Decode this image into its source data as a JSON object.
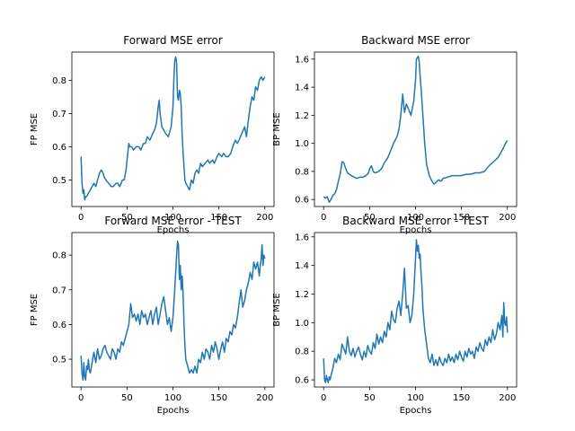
{
  "chart_data": [
    {
      "type": "line",
      "title": "Forward MSE error",
      "xlabel": "Epochs",
      "ylabel": "FP MSE",
      "xlim": [
        -10,
        210
      ],
      "ylim": [
        0.42,
        0.885
      ],
      "xticks": [
        0,
        50,
        100,
        150,
        200
      ],
      "yticks": [
        0.5,
        0.6,
        0.7,
        0.8
      ],
      "series": [
        {
          "color": "#1f77b4",
          "x": [
            0,
            1,
            2,
            3,
            4,
            5,
            6,
            8,
            10,
            12,
            14,
            16,
            18,
            20,
            22,
            24,
            25,
            27,
            30,
            33,
            35,
            38,
            40,
            42,
            45,
            47,
            49,
            50,
            52,
            53,
            55,
            57,
            60,
            63,
            65,
            68,
            70,
            72,
            75,
            78,
            80,
            82,
            84,
            85,
            86,
            87,
            88,
            90,
            92,
            95,
            98,
            100,
            101,
            102,
            103,
            104,
            105,
            106,
            107,
            108,
            109,
            110,
            111,
            112,
            113,
            114,
            116,
            118,
            120,
            122,
            124,
            126,
            128,
            130,
            132,
            135,
            138,
            140,
            143,
            145,
            148,
            150,
            153,
            155,
            158,
            160,
            163,
            165,
            168,
            170,
            172,
            175,
            178,
            180,
            182,
            184,
            186,
            188,
            190,
            192,
            194,
            196,
            198,
            200
          ],
          "y": [
            0.57,
            0.49,
            0.46,
            0.47,
            0.44,
            0.45,
            0.45,
            0.46,
            0.47,
            0.48,
            0.49,
            0.48,
            0.5,
            0.52,
            0.53,
            0.52,
            0.51,
            0.5,
            0.49,
            0.48,
            0.48,
            0.49,
            0.49,
            0.48,
            0.5,
            0.5,
            0.53,
            0.56,
            0.61,
            0.6,
            0.6,
            0.59,
            0.6,
            0.6,
            0.59,
            0.61,
            0.61,
            0.63,
            0.62,
            0.64,
            0.65,
            0.67,
            0.72,
            0.74,
            0.7,
            0.68,
            0.66,
            0.65,
            0.64,
            0.63,
            0.66,
            0.72,
            0.8,
            0.86,
            0.87,
            0.85,
            0.75,
            0.74,
            0.77,
            0.76,
            0.72,
            0.64,
            0.58,
            0.54,
            0.5,
            0.49,
            0.48,
            0.47,
            0.5,
            0.49,
            0.52,
            0.53,
            0.52,
            0.55,
            0.54,
            0.55,
            0.56,
            0.55,
            0.56,
            0.55,
            0.57,
            0.58,
            0.57,
            0.58,
            0.57,
            0.57,
            0.58,
            0.6,
            0.62,
            0.61,
            0.62,
            0.64,
            0.66,
            0.63,
            0.68,
            0.72,
            0.75,
            0.74,
            0.78,
            0.77,
            0.8,
            0.81,
            0.8,
            0.81
          ]
        }
      ]
    },
    {
      "type": "line",
      "title": "Backward MSE error",
      "xlabel": "Epochs",
      "ylabel": "BP MSE",
      "xlim": [
        -10,
        210
      ],
      "ylim": [
        0.55,
        1.65
      ],
      "xticks": [
        0,
        50,
        100,
        150,
        200
      ],
      "yticks": [
        0.6,
        0.8,
        1.0,
        1.2,
        1.4,
        1.6
      ],
      "series": [
        {
          "color": "#1f77b4",
          "x": [
            0,
            2,
            4,
            6,
            8,
            10,
            12,
            14,
            16,
            18,
            20,
            22,
            24,
            26,
            28,
            30,
            33,
            36,
            40,
            43,
            46,
            49,
            50,
            52,
            54,
            56,
            60,
            63,
            66,
            70,
            73,
            76,
            80,
            82,
            84,
            86,
            88,
            90,
            92,
            95,
            98,
            100,
            101,
            102,
            103,
            104,
            105,
            106,
            108,
            110,
            112,
            115,
            118,
            120,
            122,
            125,
            128,
            130,
            135,
            140,
            145,
            150,
            155,
            160,
            165,
            170,
            175,
            180,
            185,
            190,
            195,
            198,
            200
          ],
          "y": [
            0.62,
            0.61,
            0.62,
            0.58,
            0.6,
            0.63,
            0.64,
            0.67,
            0.73,
            0.78,
            0.87,
            0.86,
            0.82,
            0.79,
            0.78,
            0.77,
            0.76,
            0.75,
            0.76,
            0.76,
            0.77,
            0.79,
            0.82,
            0.84,
            0.8,
            0.79,
            0.8,
            0.82,
            0.86,
            0.9,
            0.95,
            1.0,
            1.05,
            1.1,
            1.2,
            1.35,
            1.22,
            1.28,
            1.25,
            1.2,
            1.3,
            1.45,
            1.6,
            1.61,
            1.62,
            1.58,
            1.48,
            1.4,
            1.2,
            1.0,
            0.85,
            0.77,
            0.73,
            0.71,
            0.72,
            0.74,
            0.73,
            0.75,
            0.76,
            0.77,
            0.77,
            0.77,
            0.78,
            0.78,
            0.79,
            0.79,
            0.8,
            0.84,
            0.87,
            0.9,
            0.96,
            1.0,
            1.02
          ]
        }
      ]
    },
    {
      "type": "line",
      "title": "Forward MSE error - TEST",
      "xlabel": "Epochs",
      "ylabel": "FP MSE",
      "xlim": [
        -10,
        210
      ],
      "ylim": [
        0.42,
        0.865
      ],
      "xticks": [
        0,
        50,
        100,
        150,
        200
      ],
      "yticks": [
        0.5,
        0.6,
        0.7,
        0.8
      ],
      "series": [
        {
          "color": "#1f77b4",
          "x": [
            0,
            1,
            2,
            3,
            4,
            5,
            6,
            7,
            8,
            9,
            10,
            12,
            14,
            16,
            18,
            20,
            22,
            24,
            26,
            28,
            30,
            32,
            34,
            36,
            38,
            40,
            42,
            44,
            46,
            48,
            50,
            52,
            54,
            56,
            58,
            60,
            62,
            64,
            66,
            68,
            70,
            72,
            74,
            76,
            78,
            80,
            82,
            84,
            86,
            88,
            90,
            92,
            94,
            96,
            98,
            100,
            102,
            104,
            105,
            106,
            107,
            108,
            109,
            110,
            111,
            112,
            113,
            114,
            116,
            118,
            120,
            122,
            124,
            126,
            128,
            130,
            132,
            134,
            136,
            138,
            140,
            142,
            144,
            146,
            148,
            150,
            152,
            154,
            156,
            158,
            160,
            162,
            164,
            166,
            168,
            170,
            172,
            174,
            176,
            178,
            180,
            182,
            184,
            186,
            188,
            190,
            192,
            194,
            195,
            196,
            197,
            198,
            199,
            200
          ],
          "y": [
            0.51,
            0.46,
            0.44,
            0.49,
            0.45,
            0.44,
            0.48,
            0.47,
            0.5,
            0.47,
            0.46,
            0.49,
            0.52,
            0.49,
            0.53,
            0.5,
            0.51,
            0.53,
            0.54,
            0.52,
            0.51,
            0.5,
            0.53,
            0.52,
            0.5,
            0.53,
            0.52,
            0.55,
            0.54,
            0.56,
            0.58,
            0.6,
            0.66,
            0.62,
            0.63,
            0.61,
            0.63,
            0.6,
            0.64,
            0.62,
            0.63,
            0.6,
            0.62,
            0.64,
            0.6,
            0.63,
            0.65,
            0.6,
            0.63,
            0.66,
            0.68,
            0.64,
            0.6,
            0.62,
            0.58,
            0.62,
            0.7,
            0.8,
            0.84,
            0.83,
            0.73,
            0.77,
            0.7,
            0.74,
            0.69,
            0.6,
            0.54,
            0.5,
            0.48,
            0.46,
            0.47,
            0.46,
            0.48,
            0.46,
            0.5,
            0.49,
            0.52,
            0.5,
            0.53,
            0.52,
            0.5,
            0.54,
            0.52,
            0.55,
            0.53,
            0.5,
            0.53,
            0.55,
            0.52,
            0.56,
            0.55,
            0.58,
            0.57,
            0.6,
            0.59,
            0.62,
            0.66,
            0.7,
            0.65,
            0.67,
            0.7,
            0.72,
            0.75,
            0.73,
            0.78,
            0.76,
            0.78,
            0.74,
            0.77,
            0.79,
            0.83,
            0.77,
            0.8,
            0.79
          ]
        }
      ]
    },
    {
      "type": "line",
      "title": "Backward MSE error - TEST",
      "xlabel": "Epochs",
      "ylabel": "BP MSE",
      "xlim": [
        -10,
        210
      ],
      "ylim": [
        0.55,
        1.63
      ],
      "xticks": [
        0,
        50,
        100,
        150,
        200
      ],
      "yticks": [
        0.6,
        0.8,
        1.0,
        1.2,
        1.4,
        1.6
      ],
      "series": [
        {
          "color": "#1f77b4",
          "x": [
            0,
            1,
            2,
            3,
            4,
            5,
            6,
            7,
            8,
            10,
            12,
            14,
            16,
            18,
            20,
            22,
            24,
            26,
            28,
            30,
            32,
            34,
            36,
            38,
            40,
            42,
            44,
            46,
            48,
            50,
            52,
            54,
            56,
            58,
            60,
            62,
            64,
            66,
            68,
            70,
            72,
            74,
            76,
            78,
            80,
            82,
            84,
            86,
            88,
            90,
            92,
            94,
            96,
            98,
            100,
            101,
            102,
            103,
            104,
            105,
            106,
            107,
            108,
            110,
            112,
            114,
            116,
            118,
            120,
            122,
            124,
            126,
            128,
            130,
            132,
            134,
            136,
            138,
            140,
            142,
            144,
            146,
            148,
            150,
            152,
            154,
            156,
            158,
            160,
            162,
            164,
            166,
            168,
            170,
            172,
            174,
            176,
            178,
            180,
            182,
            184,
            186,
            188,
            190,
            192,
            194,
            195,
            196,
            197,
            198,
            199,
            200
          ],
          "y": [
            0.75,
            0.6,
            0.58,
            0.63,
            0.6,
            0.58,
            0.62,
            0.6,
            0.63,
            0.68,
            0.75,
            0.72,
            0.78,
            0.74,
            0.85,
            0.82,
            0.78,
            0.9,
            0.8,
            0.77,
            0.82,
            0.76,
            0.8,
            0.83,
            0.78,
            0.74,
            0.8,
            0.76,
            0.84,
            0.8,
            0.78,
            0.86,
            0.82,
            0.92,
            0.85,
            0.9,
            0.86,
            0.94,
            0.9,
            1.0,
            0.95,
            1.08,
            1.02,
            1.0,
            1.1,
            1.15,
            1.05,
            1.2,
            1.38,
            1.1,
            1.12,
            1.0,
            1.05,
            1.2,
            1.45,
            1.58,
            1.5,
            1.54,
            1.45,
            1.48,
            1.35,
            1.25,
            1.1,
            0.95,
            0.85,
            0.75,
            0.72,
            0.78,
            0.7,
            0.74,
            0.7,
            0.76,
            0.72,
            0.7,
            0.75,
            0.72,
            0.78,
            0.73,
            0.76,
            0.72,
            0.78,
            0.74,
            0.8,
            0.76,
            0.73,
            0.8,
            0.76,
            0.82,
            0.78,
            0.8,
            0.75,
            0.83,
            0.8,
            0.86,
            0.82,
            0.8,
            0.88,
            0.84,
            0.9,
            0.86,
            0.95,
            0.88,
            0.92,
            1.0,
            0.95,
            1.05,
            0.9,
            1.14,
            1.0,
            0.98,
            1.04,
            0.93
          ]
        }
      ]
    }
  ]
}
